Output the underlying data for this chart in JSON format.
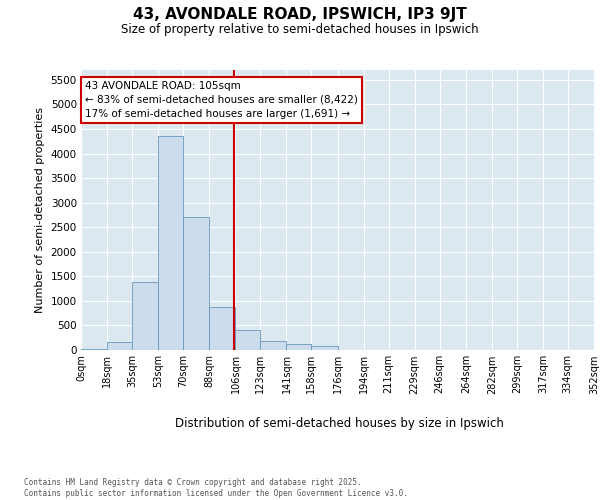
{
  "title": "43, AVONDALE ROAD, IPSWICH, IP3 9JT",
  "subtitle": "Size of property relative to semi-detached houses in Ipswich",
  "xlabel": "Distribution of semi-detached houses by size in Ipswich",
  "ylabel": "Number of semi-detached properties",
  "bar_color": "#ccdcec",
  "bar_edge_color": "#6699bb",
  "bg_color": "#dce8f0",
  "grid_color": "#ffffff",
  "annotation_text_line0": "43 AVONDALE ROAD: 105sqm",
  "annotation_text_line1": "← 83% of semi-detached houses are smaller (8,422)",
  "annotation_text_line2": "17% of semi-detached houses are larger (1,691) →",
  "vline_x": 105,
  "vline_color": "#cc0000",
  "footer1": "Contains HM Land Registry data © Crown copyright and database right 2025.",
  "footer2": "Contains public sector information licensed under the Open Government Licence v3.0.",
  "bin_edges": [
    0,
    18,
    35,
    53,
    70,
    88,
    106,
    123,
    141,
    158,
    176,
    194,
    211,
    229,
    246,
    264,
    282,
    299,
    317,
    334,
    352
  ],
  "bin_labels": [
    "0sqm",
    "18sqm",
    "35sqm",
    "53sqm",
    "70sqm",
    "88sqm",
    "106sqm",
    "123sqm",
    "141sqm",
    "158sqm",
    "176sqm",
    "194sqm",
    "211sqm",
    "229sqm",
    "246sqm",
    "264sqm",
    "282sqm",
    "299sqm",
    "317sqm",
    "334sqm",
    "352sqm"
  ],
  "counts": [
    15,
    170,
    1380,
    4350,
    2700,
    870,
    400,
    175,
    120,
    75,
    5,
    3,
    3,
    3,
    3,
    3,
    3,
    3,
    3,
    3
  ],
  "ylim": [
    0,
    5700
  ],
  "yticks": [
    0,
    500,
    1000,
    1500,
    2000,
    2500,
    3000,
    3500,
    4000,
    4500,
    5000,
    5500
  ]
}
